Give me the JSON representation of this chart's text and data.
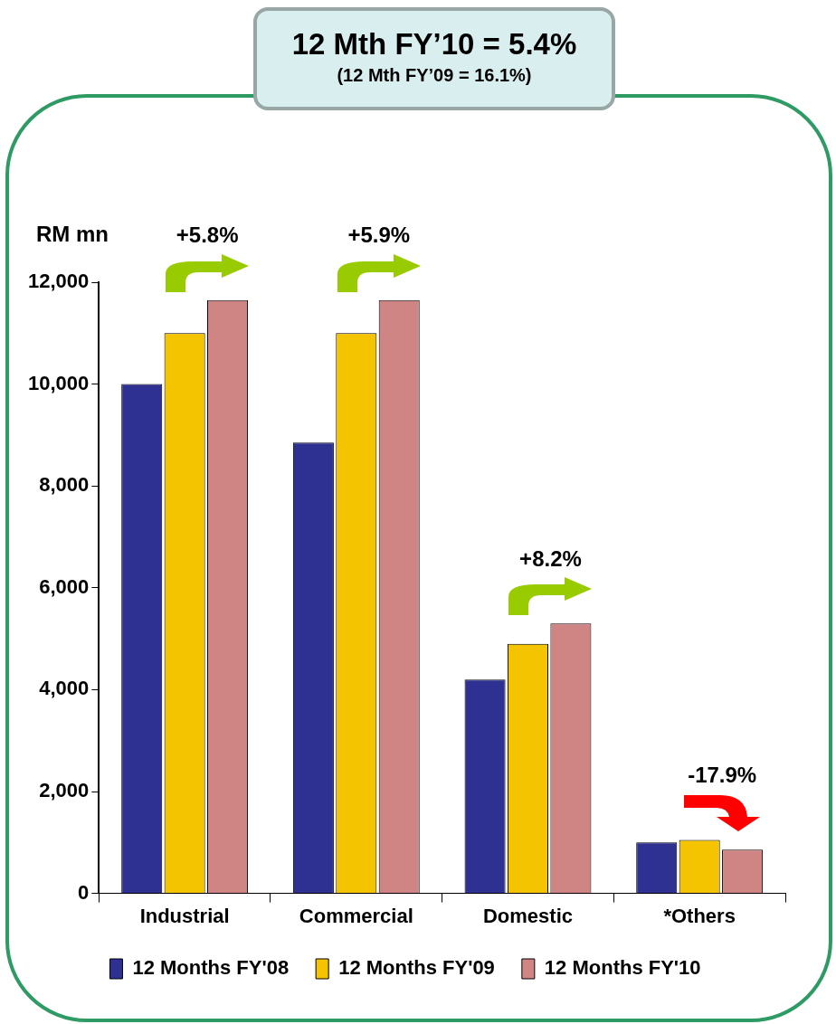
{
  "chart_data": {
    "type": "bar",
    "title": "12 Mth FY’10 = 5.4%",
    "subtitle": "(12 Mth FY’09 = 16.1%)",
    "ylabel": "RM mn",
    "categories": [
      "Industrial",
      "Commercial",
      "Domestic",
      "*Others"
    ],
    "series": [
      {
        "name": "12 Months FY'08",
        "color": "#2e3192",
        "values": [
          10000,
          8850,
          4200,
          1000
        ]
      },
      {
        "name": "12 Months FY'09",
        "color": "#f5c400",
        "values": [
          11000,
          11000,
          4900,
          1050
        ]
      },
      {
        "name": "12 Months FY'10",
        "color": "#d08585",
        "values": [
          11650,
          11650,
          5300,
          860
        ]
      }
    ],
    "ylim": [
      0,
      12000
    ],
    "yticks": [
      {
        "value": 0,
        "label": "0"
      },
      {
        "value": 2000,
        "label": "2,000"
      },
      {
        "value": 4000,
        "label": "4,000"
      },
      {
        "value": 6000,
        "label": "6,000"
      },
      {
        "value": 8000,
        "label": "8,000"
      },
      {
        "value": 10000,
        "label": "10,000"
      },
      {
        "value": 12000,
        "label": "12,000"
      }
    ],
    "annotations": [
      "+5.8%",
      "+5.9%",
      "+8.2%",
      "-17.9%"
    ],
    "grid": false,
    "legend": "bottom"
  }
}
